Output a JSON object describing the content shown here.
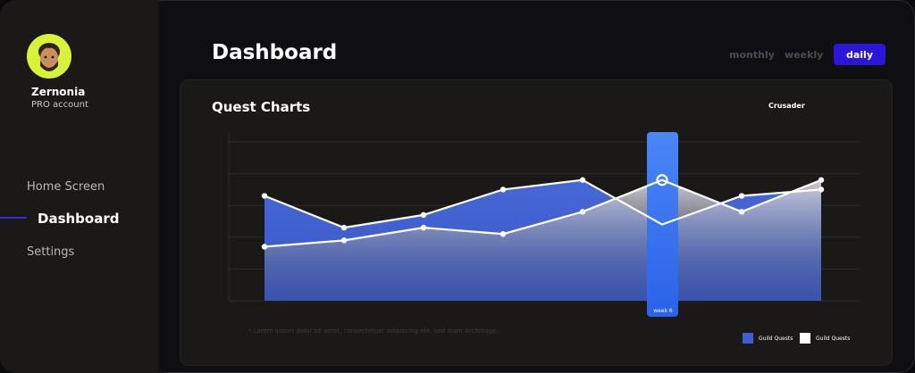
{
  "user": {
    "name": "Zernonia",
    "subtitle": "PRO account"
  },
  "nav": {
    "items": [
      "Home Screen",
      "Dashboard",
      "Settings"
    ],
    "active_index": 1
  },
  "page": {
    "title": "Dashboard"
  },
  "period_tabs": {
    "monthly": "monthly",
    "weekly": "weekly",
    "daily": "daily",
    "active": "daily"
  },
  "card": {
    "title": "Quest Charts",
    "filter": "Crusader",
    "footnote": "* Lorem ipsum dolor sit amet, consectetuer adipiscing elit, sed diam.Archmage"
  },
  "chart_data": {
    "type": "area",
    "title": "Quest Charts",
    "x": [
      1,
      2,
      3,
      4,
      5,
      6,
      7,
      8
    ],
    "ylim": [
      0,
      5
    ],
    "highlight_label": "week 6",
    "highlight_index": 5,
    "series": [
      {
        "name": "Guild Quests",
        "color": "#3f5fd0",
        "values": [
          3.3,
          2.3,
          2.7,
          3.5,
          3.8,
          2.4,
          3.3,
          3.5
        ]
      },
      {
        "name": "Guild Quests",
        "color": "#ffffff",
        "values": [
          1.7,
          1.9,
          2.3,
          2.1,
          2.8,
          3.8,
          2.8,
          3.8
        ]
      }
    ],
    "grid": true,
    "legend": "bottom-right"
  },
  "colors": {
    "accent": "#2a16d8",
    "highlight": "#2f6df0",
    "avatar_bg": "#d8f23a"
  }
}
